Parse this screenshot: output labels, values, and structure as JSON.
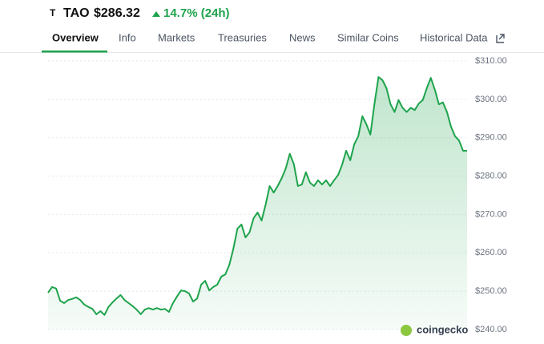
{
  "header": {
    "logo": "T",
    "symbol": "TAO",
    "price": "$286.32",
    "change": "14.7% (24h)"
  },
  "tabs": [
    "Overview",
    "Info",
    "Markets",
    "Treasuries",
    "News",
    "Similar Coins",
    "Historical Data"
  ],
  "chart_data": {
    "type": "area",
    "color": "#1ea34c",
    "grid": true,
    "watermark": "coingecko",
    "values": [
      249.6,
      251.1,
      250.7,
      247.5,
      246.9,
      247.7,
      248,
      248.4,
      247.7,
      246.5,
      245.9,
      245.4,
      244,
      244.8,
      243.8,
      245.9,
      247.1,
      248.1,
      249,
      247.7,
      246.9,
      246.1,
      245.2,
      244,
      245.2,
      245.6,
      245.2,
      245.6,
      245.2,
      245.4,
      244.6,
      246.9,
      248.6,
      250.2,
      250,
      249.4,
      247.3,
      248.1,
      251.7,
      252.7,
      250.2,
      251.1,
      251.7,
      253.8,
      254.4,
      256.9,
      261.1,
      266.3,
      267.4,
      264,
      265.3,
      269,
      270.5,
      268.4,
      272.6,
      277.4,
      275.7,
      277.4,
      279.5,
      282,
      285.8,
      283.1,
      277.4,
      277.8,
      281,
      278.3,
      277.4,
      278.9,
      277.8,
      278.9,
      277.4,
      278.9,
      280.3,
      283,
      286.6,
      284.1,
      288.3,
      290.4,
      295.6,
      293.5,
      290.8,
      298.7,
      305.8,
      305,
      302.9,
      298.7,
      296.7,
      299.8,
      297.8,
      296.7,
      297.8,
      297.2,
      298.9,
      299.8,
      302.9,
      305.6,
      302.5,
      298.7,
      299.2,
      296.7,
      292.9,
      290.4,
      289.3,
      286.6,
      286.6
    ],
    "ylim": [
      240,
      310
    ],
    "yticks": [
      {
        "value": 240,
        "label": "$240.00"
      },
      {
        "value": 250,
        "label": "$250.00"
      },
      {
        "value": 260,
        "label": "$260.00"
      },
      {
        "value": 270,
        "label": "$270.00"
      },
      {
        "value": 280,
        "label": "$280.00"
      },
      {
        "value": 290,
        "label": "$290.00"
      },
      {
        "value": 300,
        "label": "$300.00"
      },
      {
        "value": 310,
        "label": "$310.00"
      }
    ]
  }
}
